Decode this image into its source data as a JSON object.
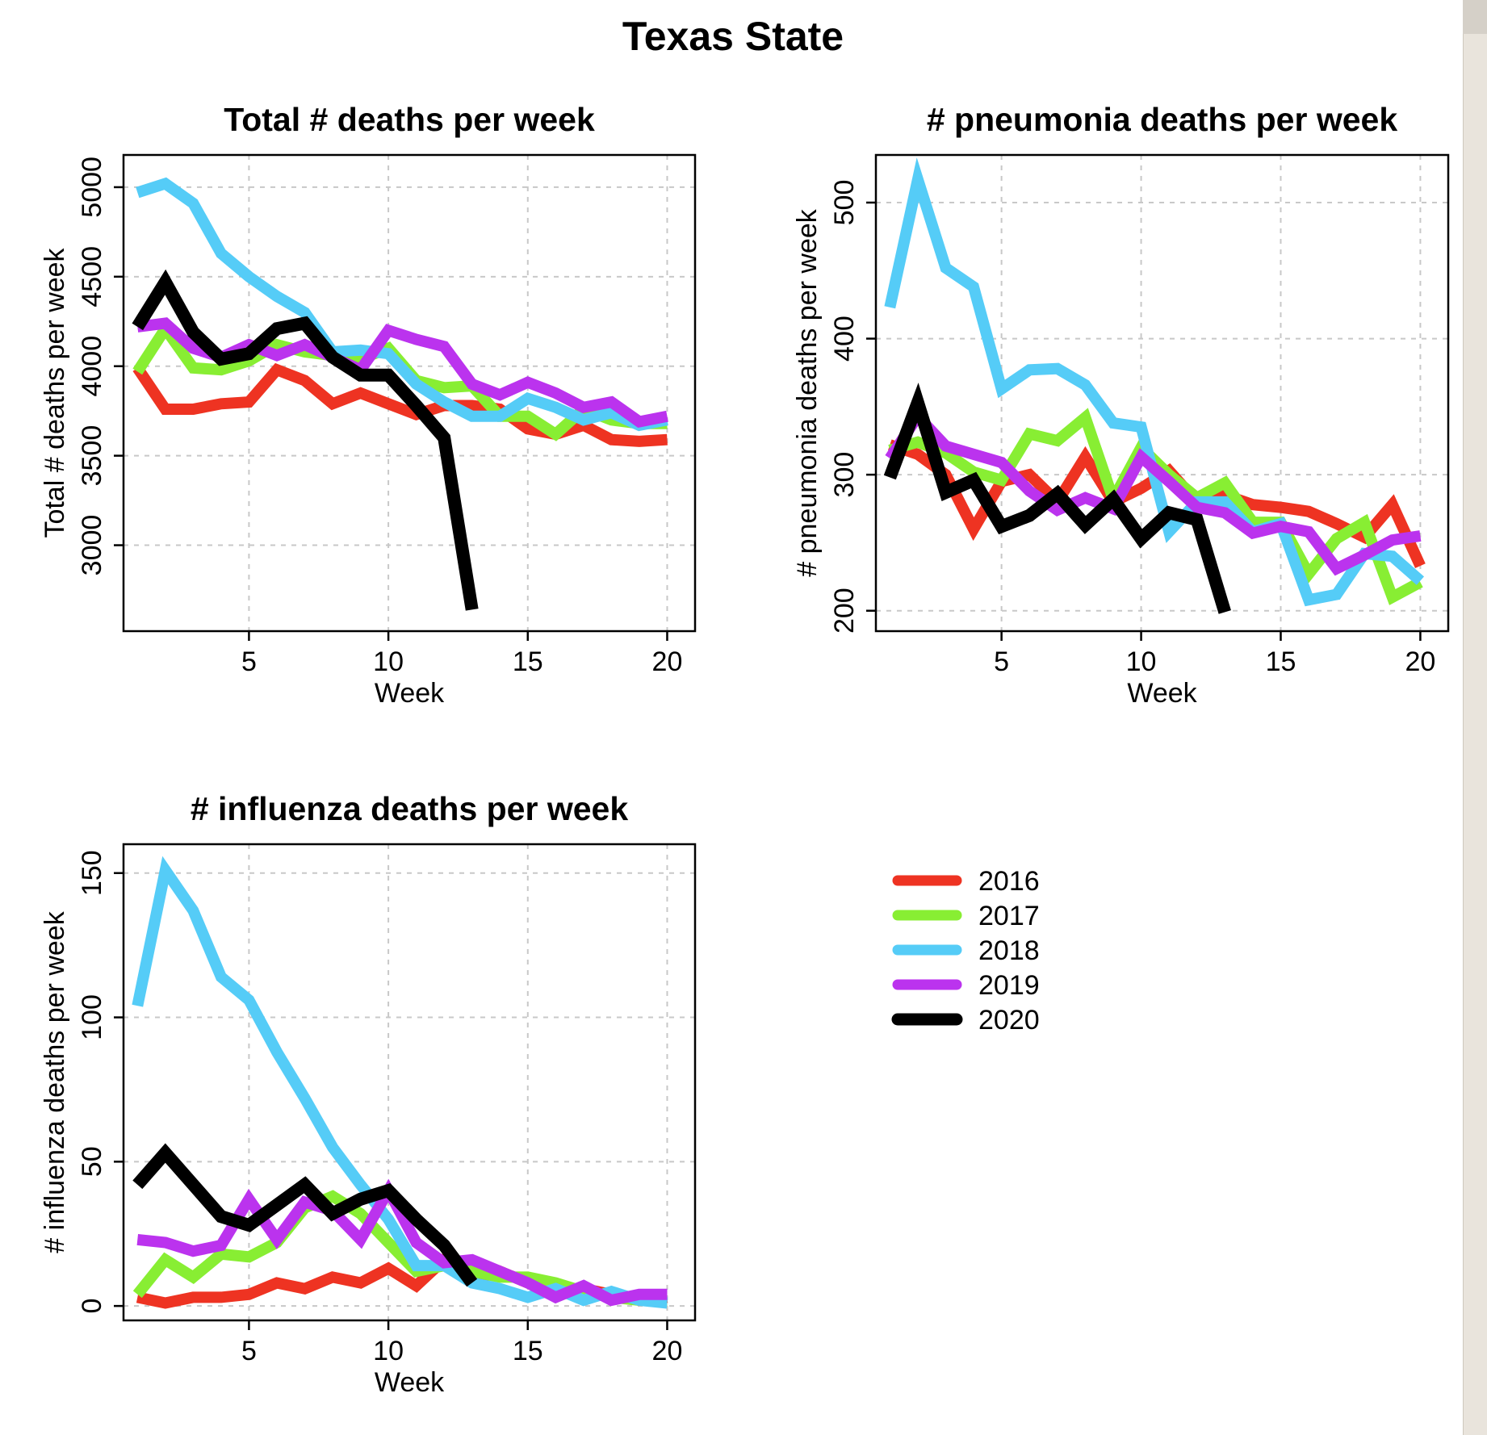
{
  "page_title": "Texas State",
  "colors": {
    "2016": "#ee3322",
    "2017": "#88ee33",
    "2018": "#55ccf7",
    "2019": "#bb33ee",
    "2020": "#000000"
  },
  "legend": {
    "position": "center",
    "items": [
      {
        "label": "2016",
        "color": "#ee3322"
      },
      {
        "label": "2017",
        "color": "#88ee33"
      },
      {
        "label": "2018",
        "color": "#55ccf7"
      },
      {
        "label": "2019",
        "color": "#bb33ee"
      },
      {
        "label": "2020",
        "color": "#000000"
      }
    ]
  },
  "chart_data": [
    {
      "type": "line",
      "title": "Total # deaths per week",
      "xlabel": "Week",
      "ylabel": "Total # deaths per week",
      "xlim": [
        0.5,
        21
      ],
      "ylim": [
        2520,
        5180
      ],
      "xticks": [
        5,
        10,
        15,
        20
      ],
      "yticks": [
        3000,
        3500,
        4000,
        4500,
        5000
      ],
      "grid": true,
      "series": [
        {
          "name": "2016",
          "color": "#ee3322",
          "x": [
            1,
            2,
            3,
            4,
            5,
            6,
            7,
            8,
            9,
            10,
            11,
            12,
            13,
            14,
            15,
            16,
            17,
            18,
            19,
            20
          ],
          "values": [
            3990,
            3760,
            3760,
            3790,
            3800,
            3980,
            3920,
            3790,
            3850,
            3790,
            3730,
            3780,
            3780,
            3760,
            3650,
            3620,
            3670,
            3590,
            3580,
            3590
          ]
        },
        {
          "name": "2017",
          "color": "#88ee33",
          "x": [
            1,
            2,
            3,
            4,
            5,
            6,
            7,
            8,
            9,
            10,
            11,
            12,
            13,
            14,
            15,
            16,
            17,
            18,
            19,
            20
          ],
          "values": [
            3970,
            4210,
            3990,
            3980,
            4030,
            4120,
            4080,
            4060,
            4040,
            4100,
            3920,
            3880,
            3890,
            3720,
            3720,
            3620,
            3760,
            3700,
            3680,
            3680
          ]
        },
        {
          "name": "2018",
          "color": "#55ccf7",
          "x": [
            1,
            2,
            3,
            4,
            5,
            6,
            7,
            8,
            9,
            10,
            11,
            12,
            13,
            14,
            15,
            16,
            17,
            18,
            19,
            20
          ],
          "values": [
            4970,
            5020,
            4910,
            4630,
            4500,
            4390,
            4300,
            4080,
            4090,
            4070,
            3900,
            3800,
            3720,
            3720,
            3820,
            3770,
            3700,
            3740,
            3670,
            3700
          ]
        },
        {
          "name": "2019",
          "color": "#bb33ee",
          "x": [
            1,
            2,
            3,
            4,
            5,
            6,
            7,
            8,
            9,
            10,
            11,
            12,
            13,
            14,
            15,
            16,
            17,
            18,
            19,
            20
          ],
          "values": [
            4220,
            4240,
            4100,
            4050,
            4120,
            4060,
            4120,
            4050,
            3980,
            4200,
            4150,
            4110,
            3900,
            3840,
            3910,
            3850,
            3770,
            3800,
            3690,
            3720
          ]
        },
        {
          "name": "2020",
          "color": "#000000",
          "x": [
            1,
            2,
            3,
            4,
            5,
            6,
            7,
            8,
            9,
            10,
            11,
            12,
            13
          ],
          "values": [
            4220,
            4470,
            4190,
            4040,
            4070,
            4210,
            4240,
            4050,
            3950,
            3950,
            3780,
            3600,
            2640
          ]
        }
      ]
    },
    {
      "type": "line",
      "title": "# pneumonia deaths per week",
      "xlabel": "Week",
      "ylabel": "# pneumonia deaths per week",
      "xlim": [
        0.5,
        21
      ],
      "ylim": [
        185,
        535
      ],
      "xticks": [
        5,
        10,
        15,
        20
      ],
      "yticks": [
        200,
        300,
        400,
        500
      ],
      "grid": true,
      "series": [
        {
          "name": "2016",
          "color": "#ee3322",
          "x": [
            1,
            2,
            3,
            4,
            5,
            6,
            7,
            8,
            9,
            10,
            11,
            12,
            13,
            14,
            15,
            16,
            17,
            18,
            19,
            20
          ],
          "values": [
            322,
            315,
            300,
            260,
            295,
            300,
            280,
            313,
            280,
            290,
            303,
            280,
            285,
            278,
            276,
            273,
            264,
            254,
            278,
            233
          ]
        },
        {
          "name": "2017",
          "color": "#88ee33",
          "x": [
            1,
            2,
            3,
            4,
            5,
            6,
            7,
            8,
            9,
            10,
            11,
            12,
            13,
            14,
            15,
            16,
            17,
            18,
            19,
            20
          ],
          "values": [
            318,
            324,
            316,
            302,
            296,
            330,
            325,
            342,
            282,
            320,
            300,
            283,
            294,
            265,
            265,
            227,
            253,
            265,
            210,
            221
          ]
        },
        {
          "name": "2018",
          "color": "#55ccf7",
          "x": [
            1,
            2,
            3,
            4,
            5,
            6,
            7,
            8,
            9,
            10,
            11,
            12,
            13,
            14,
            15,
            16,
            17,
            18,
            19,
            20
          ],
          "values": [
            423,
            517,
            452,
            438,
            363,
            377,
            378,
            366,
            338,
            335,
            258,
            280,
            280,
            258,
            264,
            208,
            212,
            242,
            240,
            222
          ]
        },
        {
          "name": "2019",
          "color": "#bb33ee",
          "x": [
            1,
            2,
            3,
            4,
            5,
            6,
            7,
            8,
            9,
            10,
            11,
            12,
            13,
            14,
            15,
            16,
            17,
            18,
            19,
            20
          ],
          "values": [
            312,
            343,
            321,
            315,
            309,
            288,
            274,
            283,
            275,
            313,
            295,
            276,
            272,
            257,
            262,
            258,
            231,
            241,
            252,
            255
          ]
        },
        {
          "name": "2020",
          "color": "#000000",
          "x": [
            1,
            2,
            3,
            4,
            5,
            6,
            7,
            8,
            9,
            10,
            11,
            12,
            13
          ],
          "values": [
            298,
            353,
            287,
            296,
            262,
            270,
            286,
            263,
            282,
            253,
            272,
            267,
            199
          ]
        }
      ]
    },
    {
      "type": "line",
      "title": "# influenza deaths per week",
      "xlabel": "Week",
      "ylabel": "# influenza deaths per week",
      "xlim": [
        0.5,
        21
      ],
      "ylim": [
        -5,
        160
      ],
      "xticks": [
        5,
        10,
        15,
        20
      ],
      "yticks": [
        0,
        50,
        100,
        150
      ],
      "grid": true,
      "series": [
        {
          "name": "2016",
          "color": "#ee3322",
          "x": [
            1,
            2,
            3,
            4,
            5,
            6,
            7,
            8,
            9,
            10,
            11,
            12,
            13,
            14,
            15,
            16,
            17,
            18,
            19,
            20
          ],
          "values": [
            3,
            1,
            3,
            3,
            4,
            8,
            6,
            10,
            8,
            13,
            7,
            16,
            9,
            12,
            8,
            5,
            6,
            4,
            2,
            3
          ]
        },
        {
          "name": "2017",
          "color": "#88ee33",
          "x": [
            1,
            2,
            3,
            4,
            5,
            6,
            7,
            8,
            9,
            10,
            11,
            12,
            13,
            14,
            15,
            16,
            17,
            18,
            19,
            20
          ],
          "values": [
            4,
            16,
            10,
            18,
            17,
            22,
            34,
            38,
            32,
            22,
            12,
            14,
            12,
            10,
            10,
            8,
            5,
            3,
            2,
            2
          ]
        },
        {
          "name": "2018",
          "color": "#55ccf7",
          "x": [
            1,
            2,
            3,
            4,
            5,
            6,
            7,
            8,
            9,
            10,
            11,
            12,
            13,
            14,
            15,
            16,
            17,
            18,
            19,
            20
          ],
          "values": [
            104,
            151,
            137,
            114,
            106,
            88,
            72,
            55,
            42,
            30,
            14,
            14,
            8,
            6,
            3,
            6,
            2,
            5,
            2,
            1
          ]
        },
        {
          "name": "2019",
          "color": "#bb33ee",
          "x": [
            1,
            2,
            3,
            4,
            5,
            6,
            7,
            8,
            9,
            10,
            11,
            12,
            13,
            14,
            15,
            16,
            17,
            18,
            19,
            20
          ],
          "values": [
            23,
            22,
            19,
            21,
            37,
            23,
            36,
            33,
            23,
            40,
            22,
            15,
            16,
            12,
            8,
            3,
            7,
            2,
            4,
            4
          ]
        },
        {
          "name": "2020",
          "color": "#000000",
          "x": [
            1,
            2,
            3,
            4,
            5,
            6,
            7,
            8,
            9,
            10,
            11,
            12,
            13
          ],
          "values": [
            42,
            53,
            42,
            31,
            28,
            35,
            42,
            32,
            37,
            40,
            30,
            21,
            8
          ]
        }
      ]
    }
  ]
}
